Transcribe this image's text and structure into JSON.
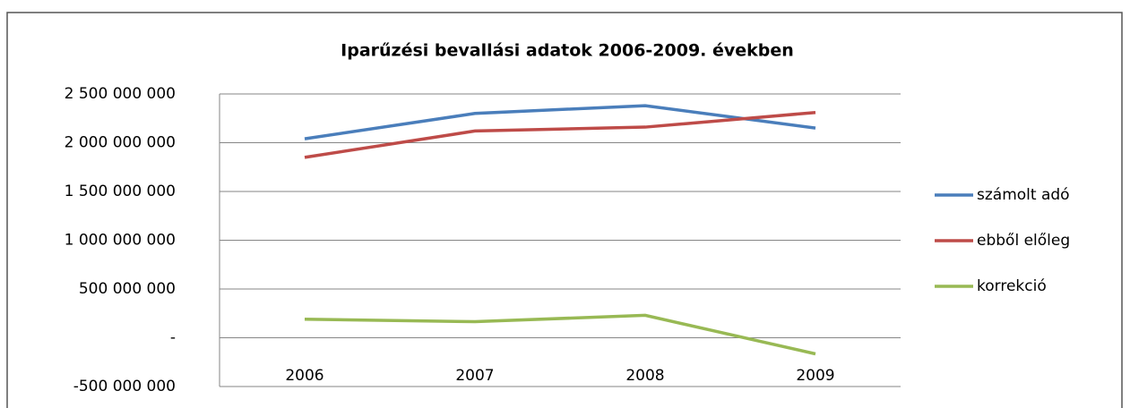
{
  "chart_data": {
    "type": "line",
    "title": "Iparűzési bevallási adatok 2006-2009. években",
    "categories": [
      "2006",
      "2007",
      "2008",
      "2009"
    ],
    "series": [
      {
        "name": "számolt adó",
        "color": "#4a7ebb",
        "values": [
          2040000000,
          2300000000,
          2380000000,
          2150000000
        ]
      },
      {
        "name": "ebből előleg",
        "color": "#be4b48",
        "values": [
          1850000000,
          2120000000,
          2160000000,
          2310000000
        ]
      },
      {
        "name": "korrekció",
        "color": "#98b954",
        "values": [
          190000000,
          165000000,
          230000000,
          -165000000
        ]
      }
    ],
    "ylim": [
      -500000000,
      2500000000
    ],
    "yticks": [
      {
        "value": -500000000,
        "label": "-500 000 000"
      },
      {
        "value": 0,
        "label": "-"
      },
      {
        "value": 500000000,
        "label": "500 000 000"
      },
      {
        "value": 1000000000,
        "label": "1 000 000 000"
      },
      {
        "value": 1500000000,
        "label": "1 500 000 000"
      },
      {
        "value": 2000000000,
        "label": "2 000 000 000"
      },
      {
        "value": 2500000000,
        "label": "2 500 000 000"
      }
    ],
    "grid": true,
    "legend": "right"
  }
}
